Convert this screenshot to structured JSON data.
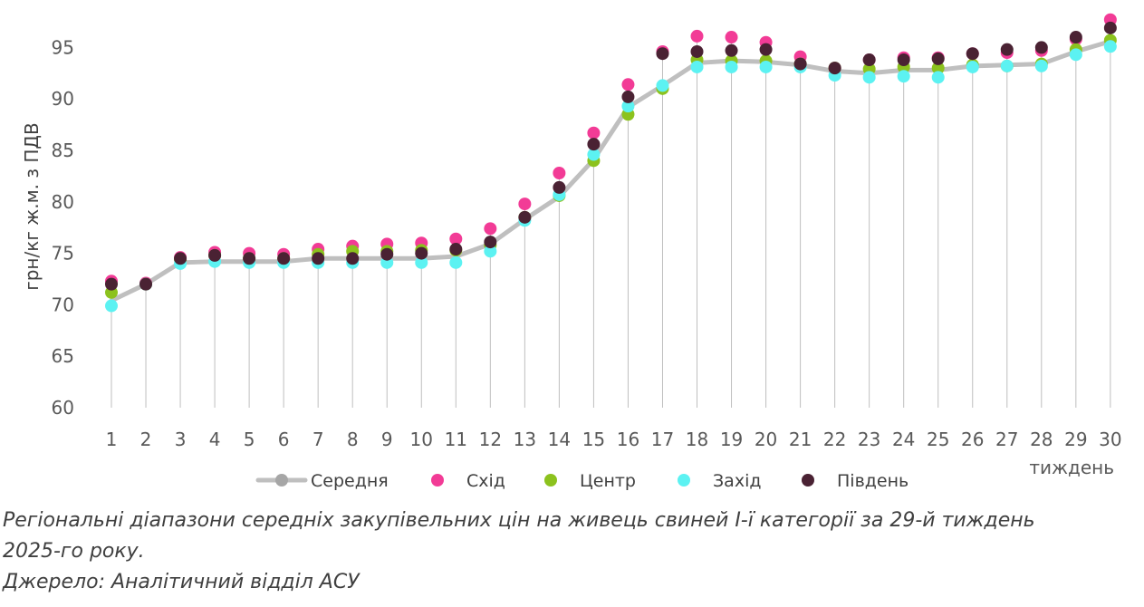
{
  "chart_data": {
    "type": "line",
    "ylabel": "грн/кг ж.м. з ПДВ",
    "xlabel": "тиждень",
    "ylim": [
      60,
      97
    ],
    "y_ticks": [
      "60",
      "65",
      "70",
      "75",
      "80",
      "85",
      "90",
      "95"
    ],
    "categories": [
      "1",
      "2",
      "3",
      "4",
      "5",
      "6",
      "7",
      "8",
      "9",
      "10",
      "11",
      "12",
      "13",
      "14",
      "15",
      "16",
      "17",
      "18",
      "19",
      "20",
      "21",
      "22",
      "23",
      "24",
      "25",
      "26",
      "27",
      "28",
      "29",
      "30"
    ],
    "legend_position": "bottom",
    "grid": "vertical drop lines",
    "series": [
      {
        "name": "Середня",
        "color": "#BFBFBF",
        "style": "line",
        "values": [
          70.4,
          72.0,
          74.1,
          74.2,
          74.2,
          74.2,
          74.5,
          74.5,
          74.5,
          74.5,
          74.7,
          75.9,
          78.3,
          80.5,
          84.1,
          89.2,
          91.3,
          93.5,
          93.7,
          93.6,
          93.3,
          92.7,
          92.5,
          92.8,
          92.8,
          93.2,
          93.3,
          93.4,
          94.6,
          95.6
        ]
      },
      {
        "name": "Схід",
        "color": "#F23B96",
        "style": "markers",
        "values": [
          72.3,
          72.1,
          74.6,
          75.1,
          75.0,
          74.9,
          75.4,
          75.7,
          75.9,
          76.0,
          76.4,
          77.4,
          79.8,
          82.8,
          86.7,
          91.4,
          94.6,
          96.1,
          96.0,
          95.5,
          94.1,
          93.0,
          93.8,
          94.0,
          94.0,
          94.4,
          94.5,
          94.7,
          95.8,
          97.7
        ]
      },
      {
        "name": "Центр",
        "color": "#8CC21E",
        "style": "markers",
        "values": [
          71.2,
          72.0,
          74.4,
          74.8,
          74.5,
          74.5,
          74.9,
          75.2,
          75.2,
          75.3,
          75.3,
          75.8,
          78.5,
          80.6,
          84.0,
          88.5,
          91.0,
          93.8,
          93.7,
          93.7,
          93.4,
          93.0,
          92.9,
          93.1,
          93.0,
          93.3,
          93.2,
          93.4,
          94.8,
          95.7
        ]
      },
      {
        "name": "Захід",
        "color": "#5CF2F2",
        "style": "markers",
        "values": [
          69.9,
          72.0,
          74.0,
          74.2,
          74.1,
          74.1,
          74.1,
          74.1,
          74.1,
          74.1,
          74.1,
          75.2,
          78.2,
          80.7,
          84.6,
          89.3,
          91.3,
          93.1,
          93.1,
          93.1,
          93.1,
          92.3,
          92.1,
          92.2,
          92.1,
          93.1,
          93.2,
          93.2,
          94.3,
          95.1
        ]
      },
      {
        "name": "Південь",
        "color": "#4A2233",
        "style": "markers",
        "values": [
          72.0,
          72.0,
          74.5,
          74.8,
          74.5,
          74.5,
          74.5,
          74.5,
          74.9,
          75.0,
          75.4,
          76.1,
          78.5,
          81.4,
          85.6,
          90.2,
          94.4,
          94.6,
          94.7,
          94.8,
          93.4,
          93.0,
          93.8,
          93.8,
          93.9,
          94.4,
          94.8,
          95.0,
          96.0,
          96.9
        ]
      }
    ]
  },
  "caption": {
    "line1": "Регіональні діапазони середніх закупівельних цін на живець свиней І-ї категорії за 29-й тиждень",
    "line2": "2025-го року.",
    "source": "Джерело: Аналітичний відділ АСУ"
  }
}
